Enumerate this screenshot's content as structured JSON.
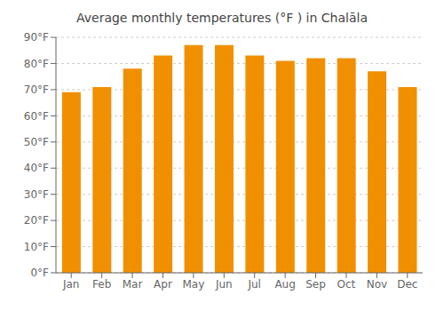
{
  "chart_data": {
    "type": "bar",
    "title": "Average monthly temperatures (°F ) in Chalāla",
    "categories": [
      "Jan",
      "Feb",
      "Mar",
      "Apr",
      "May",
      "Jun",
      "Jul",
      "Aug",
      "Sep",
      "Oct",
      "Nov",
      "Dec"
    ],
    "values": [
      69,
      71,
      78,
      83,
      87,
      87,
      83,
      81,
      82,
      82,
      77,
      71
    ],
    "color": "#F09000",
    "ylim": [
      0,
      90
    ],
    "yticks": [
      {
        "value": 0,
        "label": "0°F"
      },
      {
        "value": 10,
        "label": "10°F"
      },
      {
        "value": 20,
        "label": "20°F"
      },
      {
        "value": 30,
        "label": "30°F"
      },
      {
        "value": 40,
        "label": "40°F"
      },
      {
        "value": 50,
        "label": "50°F"
      },
      {
        "value": 60,
        "label": "60°F"
      },
      {
        "value": 70,
        "label": "70°F"
      },
      {
        "value": 80,
        "label": "80°F"
      },
      {
        "value": 90,
        "label": "90°F"
      }
    ],
    "grid": true
  }
}
